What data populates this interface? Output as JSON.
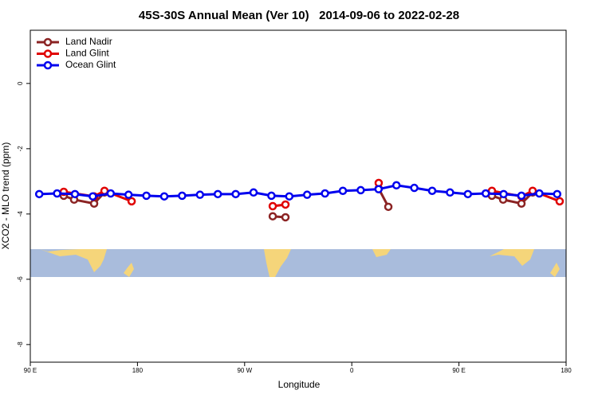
{
  "chart_data": {
    "type": "line",
    "title": "45S-30S Annual Mean (Ver 10)   2014-09-06 to 2022-02-28",
    "x_label": "Longitude",
    "y_label": "XCO2 - MLO trend (ppm)",
    "xlim": [
      90,
      540
    ],
    "xticks": [
      {
        "value": 90,
        "label": "90 E"
      },
      180,
      {
        "value": 270,
        "label": "90 W"
      },
      {
        "value": 360,
        "label": "0"
      },
      {
        "value": 450,
        "label": "90 E"
      },
      {
        "value": 540,
        "label": "180"
      }
    ],
    "ylim": [
      -8.54,
      1.63
    ],
    "yticks": [
      0,
      -2,
      -4,
      -6,
      -8
    ],
    "legend": "top-left",
    "series": [
      {
        "name": "Land Nadir",
        "color": "#8b2323",
        "x": [
          118.1,
          126.8,
          143.6,
          152.3,
          null,
          293.6,
          304.3,
          null,
          382.6,
          390.7,
          null,
          477.7,
          487.1,
          502.5,
          511.9
        ],
        "values": [
          -3.44,
          -3.56,
          -3.68,
          -3.34,
          null,
          -4.07,
          -4.1,
          null,
          -3.22,
          -3.78,
          null,
          -3.44,
          -3.56,
          -3.68,
          -3.34
        ]
      },
      {
        "name": "Land Glint",
        "color": "#e00000",
        "x": [
          118.1,
          143.6,
          152.3,
          175.1,
          null,
          293.6,
          304.3,
          null,
          382.6,
          null,
          477.7,
          502.5,
          511.9,
          534.6
        ],
        "values": [
          -3.32,
          -3.46,
          -3.29,
          -3.61,
          null,
          -3.76,
          -3.71,
          null,
          -3.05,
          null,
          -3.29,
          -3.46,
          -3.29,
          -3.61
        ]
      },
      {
        "name": "Ocean Glint",
        "color": "#0000ee",
        "x": [
          97.5,
          112.5,
          127.5,
          142.5,
          157.5,
          172.5,
          187.5,
          202.5,
          217.5,
          232.5,
          247.5,
          262.5,
          277.5,
          292.5,
          307.5,
          322.5,
          337.5,
          352.5,
          367.5,
          382.5,
          397.5,
          412.5,
          427.5,
          442.5,
          457.5,
          472.5,
          487.5,
          502.5,
          517.5,
          532.5
        ],
        "values": [
          -3.39,
          -3.37,
          -3.39,
          -3.46,
          -3.37,
          -3.41,
          -3.44,
          -3.46,
          -3.44,
          -3.41,
          -3.39,
          -3.39,
          -3.34,
          -3.44,
          -3.46,
          -3.41,
          -3.37,
          -3.29,
          -3.27,
          -3.24,
          -3.12,
          -3.2,
          -3.29,
          -3.34,
          -3.39,
          -3.37,
          -3.39,
          -3.44,
          -3.37,
          -3.39
        ]
      }
    ]
  }
}
